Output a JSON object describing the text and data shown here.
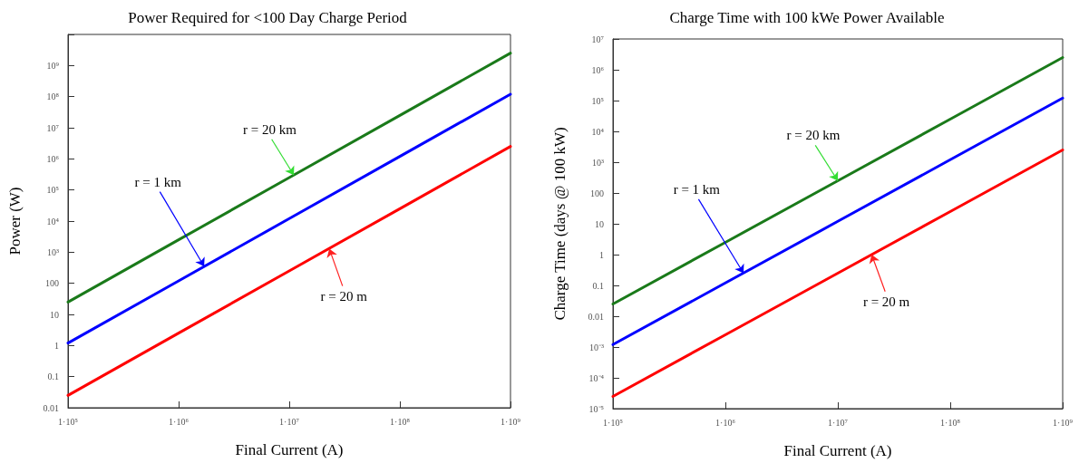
{
  "chart_data": [
    {
      "type": "line",
      "title": "Power Required for <100 Day Charge Period",
      "xlabel": "Final Current (A)",
      "ylabel": "Power (W)",
      "log": "xy",
      "grid": false,
      "marker": "none",
      "line_style": "solid",
      "x": [
        100000,
        1000000,
        10000000,
        100000000,
        1000000000
      ],
      "series": [
        {
          "color": "#1a7a1a",
          "values": [
            25,
            2500,
            250000,
            25000000,
            2500000000
          ]
        },
        {
          "color": "#0000ff",
          "values": [
            1.2,
            120,
            12000,
            1200000,
            120000000
          ]
        },
        {
          "color": "#ff0000",
          "values": [
            0.025,
            2.5,
            250,
            25000,
            2500000
          ]
        }
      ],
      "xlim": [
        100000,
        1000000000
      ],
      "xticks": [
        {
          "value": 100000,
          "label": "1·10⁵"
        },
        {
          "value": 1000000,
          "label": "1·10⁶"
        },
        {
          "value": 10000000,
          "label": "1·10⁷"
        },
        {
          "value": 100000000,
          "label": "1·10⁸"
        },
        {
          "value": 1000000000,
          "label": "1·10⁹"
        }
      ],
      "ylim": [
        0.01,
        10000000000
      ],
      "yticks": [
        0.01,
        0.1,
        1,
        10,
        100,
        {
          "value": 1000,
          "label": "10³"
        },
        {
          "value": 10000,
          "label": "10⁴"
        },
        {
          "value": 100000,
          "label": "10⁵"
        },
        {
          "value": 1000000,
          "label": "10⁶"
        },
        {
          "value": 10000000,
          "label": "10⁷"
        },
        {
          "value": 100000000,
          "label": "10⁸"
        },
        {
          "value": 1000000000,
          "label": "10⁹"
        },
        {
          "value": 10000000000,
          "label": null
        }
      ],
      "annotations": [
        {
          "text": "r = 20 km",
          "x": 11000000,
          "y": 300000
        },
        {
          "text": "r = 1 km",
          "x": 1700000,
          "y": 350
        },
        {
          "text": "r = 20 m",
          "x": 23000000,
          "y": 1300
        }
      ]
    },
    {
      "type": "line",
      "title": "Charge Time with 100 kWe Power Available",
      "xlabel": "Final Current (A)",
      "ylabel": "Charge Time (days @ 100 kW)",
      "log": "xy",
      "grid": false,
      "marker": "none",
      "line_style": "solid",
      "x": [
        100000,
        1000000,
        10000000,
        100000000,
        1000000000
      ],
      "series": [
        {
          "color": "#1a7a1a",
          "values": [
            0.025,
            2.5,
            250,
            25000,
            2500000
          ]
        },
        {
          "color": "#0000ff",
          "values": [
            0.0012,
            0.12,
            12,
            1200,
            120000
          ]
        },
        {
          "color": "#ff0000",
          "values": [
            2.5e-05,
            0.0025,
            0.25,
            25,
            2500
          ]
        }
      ],
      "xlim": [
        100000,
        1000000000
      ],
      "xticks": [
        {
          "value": 100000,
          "label": "1·10⁵"
        },
        {
          "value": 1000000,
          "label": "1·10⁶"
        },
        {
          "value": 10000000,
          "label": "1·10⁷"
        },
        {
          "value": 100000000,
          "label": "1·10⁸"
        },
        {
          "value": 1000000000,
          "label": "1·10⁹"
        }
      ],
      "ylim": [
        1e-05,
        10000000
      ],
      "yticks": [
        {
          "value": 1e-05,
          "label": "10⁻⁵"
        },
        {
          "value": 0.0001,
          "label": "10⁻⁴"
        },
        {
          "value": 0.001,
          "label": "10⁻³"
        },
        0.01,
        0.1,
        1,
        10,
        100,
        {
          "value": 1000,
          "label": "10³"
        },
        {
          "value": 10000,
          "label": "10⁴"
        },
        {
          "value": 100000,
          "label": "10⁵"
        },
        {
          "value": 1000000,
          "label": "10⁶"
        },
        {
          "value": 10000000,
          "label": "10⁷"
        }
      ],
      "annotations": [
        {
          "text": "r = 20 km",
          "x": 10000000,
          "y": 250
        },
        {
          "text": "r = 1 km",
          "x": 1450000,
          "y": 0.25
        },
        {
          "text": "r = 20 m",
          "x": 20000000,
          "y": 1
        }
      ]
    }
  ]
}
